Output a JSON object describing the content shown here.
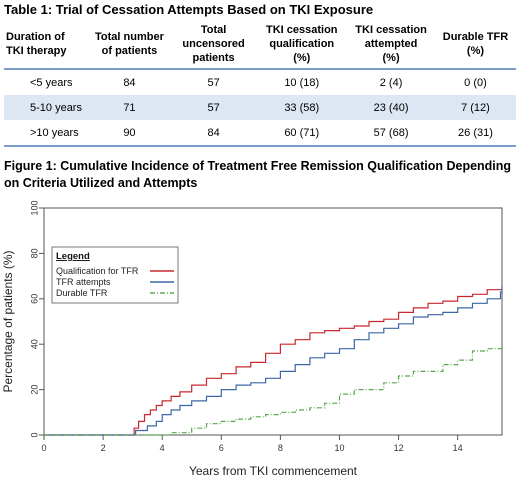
{
  "table": {
    "title": "Table 1: Trial of Cessation Attempts Based on TKI Exposure",
    "headers": [
      [
        "Duration of",
        "TKI therapy"
      ],
      [
        "Total number",
        "of patients"
      ],
      [
        "Total",
        "uncensored",
        "patients"
      ],
      [
        "TKI cessation",
        "qualification",
        "(%)"
      ],
      [
        "TKI cessation",
        "attempted",
        "(%)"
      ],
      [
        "Durable TFR",
        "(%)"
      ]
    ],
    "rows": [
      [
        "<5 years",
        "84",
        "57",
        "10 (18)",
        "2 (4)",
        "0 (0)"
      ],
      [
        "5-10 years",
        "71",
        "57",
        "33 (58)",
        "23 (40)",
        "7 (12)"
      ],
      [
        ">10 years",
        "90",
        "84",
        "60 (71)",
        "57 (68)",
        "26 (31)"
      ]
    ]
  },
  "figure": {
    "title": "Figure 1: Cumulative Incidence of Treatment Free Remission Qualification Depending on Criteria Utilized and Attempts"
  },
  "chart_data": {
    "type": "line",
    "xlabel": "Years from TKI commencement",
    "ylabel": "Percentage of patients (%)",
    "xlim": [
      0,
      15.5
    ],
    "ylim": [
      0,
      100
    ],
    "xticks": [
      "0",
      "2",
      "4",
      "6",
      "8",
      "10",
      "12",
      "14"
    ],
    "yticks": [
      "0",
      "20",
      "40",
      "60",
      "80",
      "100"
    ],
    "grid": false,
    "legend": {
      "title": "Legend",
      "placement": "left",
      "entries": [
        "Qualification for TFR",
        "TFR attempts",
        "Durable TFR"
      ]
    },
    "series": [
      {
        "name": "Qualification for TFR",
        "color": "#c8282d",
        "style": "solid",
        "x": [
          0,
          3.0,
          3.05,
          3.2,
          3.4,
          3.6,
          3.8,
          4.0,
          4.3,
          4.6,
          5.0,
          5.5,
          6.0,
          6.5,
          7.0,
          7.5,
          8.0,
          8.5,
          9.0,
          9.5,
          10.0,
          10.5,
          11.0,
          11.5,
          12.0,
          12.5,
          13.0,
          13.5,
          14.0,
          14.5,
          15.0,
          15.5
        ],
        "y": [
          0,
          0,
          3,
          6,
          9,
          11,
          13,
          15,
          17,
          19,
          22,
          25,
          27,
          30,
          32,
          36,
          40,
          42,
          45,
          46,
          47,
          48,
          50,
          51,
          54,
          56,
          58,
          59,
          61,
          62,
          64,
          65
        ]
      },
      {
        "name": "TFR attempts",
        "color": "#3d67a8",
        "style": "solid",
        "x": [
          0,
          3.0,
          3.1,
          3.5,
          3.8,
          4.0,
          4.3,
          4.6,
          5.0,
          5.5,
          6.0,
          6.5,
          7.0,
          7.5,
          8.0,
          8.5,
          9.0,
          9.5,
          10.0,
          10.5,
          11.0,
          11.5,
          12.0,
          12.5,
          13.0,
          13.5,
          14.0,
          14.5,
          15.0,
          15.45,
          15.5
        ],
        "y": [
          0,
          0,
          2,
          4,
          6,
          9,
          11,
          13,
          15,
          17,
          20,
          22,
          23,
          25,
          28,
          31,
          34,
          36,
          38,
          42,
          45,
          47,
          49,
          52,
          53,
          54,
          56,
          58,
          60,
          63,
          66
        ]
      },
      {
        "name": "Durable TFR",
        "color": "#5aa84e",
        "style": "dashdot",
        "x": [
          0,
          4.0,
          4.3,
          5.0,
          5.5,
          6.0,
          6.5,
          7.0,
          7.5,
          8.0,
          8.5,
          9.0,
          9.5,
          10.0,
          10.5,
          11.0,
          11.5,
          12.0,
          12.5,
          13.0,
          13.5,
          14.0,
          14.5,
          15.0,
          15.5
        ],
        "y": [
          0,
          0,
          1,
          3,
          5,
          6,
          7,
          8,
          9,
          10,
          11,
          12,
          14,
          18,
          20,
          20,
          23,
          26,
          28,
          28,
          31,
          33,
          37,
          38,
          38
        ]
      }
    ]
  }
}
